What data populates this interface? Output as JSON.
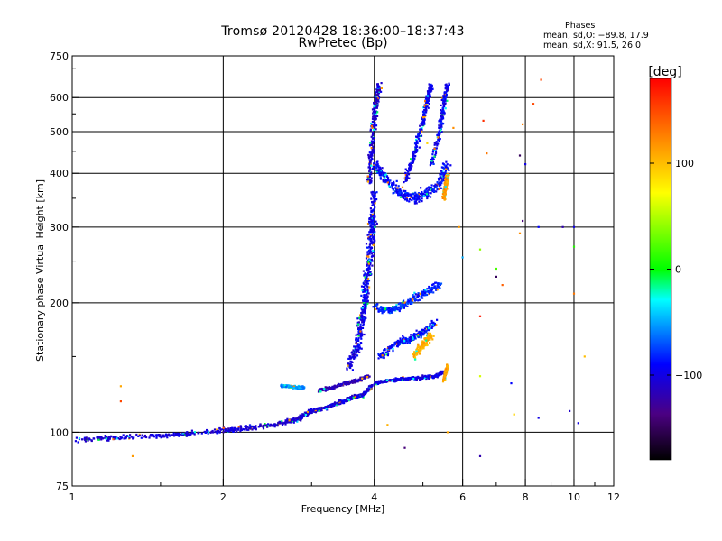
{
  "header": {
    "title": "Tromsø 20120428 18:36:00–18:37:43",
    "subtitle": "RwPretec (Bp)"
  },
  "phases_box": {
    "title": "Phases",
    "line_o": "mean, sd,O: −89.8, 17.9",
    "line_x": "mean, sd,X: 91.5, 26.0"
  },
  "chart_data": {
    "type": "scatter",
    "title": "Tromsø 20120428 18:36:00–18:37:43",
    "subtitle": "RwPretec (Bp)",
    "xlabel": "Frequency [MHz]",
    "ylabel": "Stationary phase Virtual Height [km]",
    "x_scale": "log",
    "y_scale": "log",
    "xlim": [
      1,
      12
    ],
    "ylim": [
      75,
      750
    ],
    "x_ticks": [
      1,
      2,
      4,
      6,
      8,
      10,
      12
    ],
    "x_tick_labels": [
      "1",
      "2",
      "4",
      "6",
      "8",
      "10",
      "12"
    ],
    "x_gridlines": [
      2,
      4,
      6,
      8,
      10
    ],
    "y_ticks": [
      75,
      100,
      200,
      300,
      400,
      500,
      600,
      750
    ],
    "y_tick_labels": [
      "75",
      "100",
      "200",
      "300",
      "400",
      "500",
      "600",
      "750"
    ],
    "y_gridlines": [
      100,
      200,
      300,
      400,
      500,
      600
    ],
    "grid": true,
    "colorbar": {
      "label": "[deg]",
      "range": [
        -180,
        180
      ],
      "ticks": [
        100,
        0,
        -100
      ],
      "tick_labels": [
        "100",
        "0",
        "−100"
      ]
    },
    "traces": [
      {
        "x": [
          1.02,
          1.2,
          1.45,
          1.7,
          2.0,
          2.2,
          2.5,
          2.8,
          3.0
        ],
        "y": [
          96,
          97,
          98,
          99,
          101,
          102,
          104,
          107,
          112
        ],
        "phase": -105,
        "spread": 0.018
      },
      {
        "x": [
          2.6,
          2.7,
          2.8,
          2.9
        ],
        "y": [
          128,
          128,
          127,
          127
        ],
        "phase": -55,
        "spread": 0.01
      },
      {
        "x": [
          3.0,
          3.2,
          3.4,
          3.6,
          3.8,
          3.95
        ],
        "y": [
          112,
          114,
          117,
          120,
          122,
          128
        ],
        "phase": -105,
        "spread": 0.015
      },
      {
        "x": [
          3.1,
          3.3,
          3.5,
          3.7,
          3.9
        ],
        "y": [
          125,
          127,
          130,
          132,
          135
        ],
        "phase": -115,
        "spread": 0.012
      },
      {
        "x": [
          3.55,
          3.7,
          3.85,
          3.95,
          4.0
        ],
        "y": [
          140,
          160,
          200,
          260,
          320
        ],
        "phase": -100,
        "spread": 0.04
      },
      {
        "x": [
          3.7,
          3.8,
          3.88,
          3.95,
          4.0
        ],
        "y": [
          150,
          190,
          240,
          300,
          360
        ],
        "phase": -95,
        "spread": 0.035
      },
      {
        "x": [
          3.9,
          3.95,
          4.0,
          4.05,
          4.1
        ],
        "y": [
          380,
          450,
          540,
          600,
          640
        ],
        "phase": -105,
        "spread": 0.03
      },
      {
        "x": [
          4.0,
          4.3,
          4.6,
          5.0,
          5.3,
          5.5
        ],
        "y": [
          130,
          132,
          133,
          134,
          135,
          138
        ],
        "phase": -100,
        "spread": 0.012
      },
      {
        "x": [
          4.0,
          4.3,
          4.7,
          5.0,
          5.4
        ],
        "y": [
          195,
          192,
          200,
          210,
          220
        ],
        "phase": -80,
        "spread": 0.03
      },
      {
        "x": [
          4.1,
          4.4,
          4.7,
          5.0,
          5.3
        ],
        "y": [
          150,
          160,
          165,
          170,
          180
        ],
        "phase": -90,
        "spread": 0.03
      },
      {
        "x": [
          4.0,
          4.2,
          4.5,
          4.8,
          5.1,
          5.4,
          5.6
        ],
        "y": [
          420,
          390,
          360,
          350,
          360,
          380,
          420
        ],
        "phase": -90,
        "spread": 0.04
      },
      {
        "x": [
          4.6,
          4.8,
          5.0,
          5.1,
          5.2
        ],
        "y": [
          380,
          440,
          520,
          590,
          640
        ],
        "phase": -95,
        "spread": 0.025
      },
      {
        "x": [
          5.2,
          5.4,
          5.5,
          5.6
        ],
        "y": [
          420,
          500,
          580,
          640
        ],
        "phase": -95,
        "spread": 0.025
      },
      {
        "x": [
          5.5,
          5.55,
          5.6
        ],
        "y": [
          350,
          370,
          400
        ],
        "phase": 115,
        "spread": 0.02
      },
      {
        "x": [
          5.5,
          5.55,
          5.6
        ],
        "y": [
          132,
          138,
          143
        ],
        "phase": 110,
        "spread": 0.012
      },
      {
        "x": [
          4.8,
          5.0,
          5.2
        ],
        "y": [
          150,
          160,
          168
        ],
        "phase": 105,
        "spread": 0.03
      }
    ],
    "scatter_outliers": [
      {
        "x": 1.25,
        "y": 128,
        "phase": 110
      },
      {
        "x": 1.25,
        "y": 118,
        "phase": 150
      },
      {
        "x": 1.32,
        "y": 88,
        "phase": 115
      },
      {
        "x": 4.6,
        "y": 92,
        "phase": -140
      },
      {
        "x": 4.25,
        "y": 104,
        "phase": 105
      },
      {
        "x": 5.6,
        "y": 100,
        "phase": 110
      },
      {
        "x": 5.9,
        "y": 300,
        "phase": 115
      },
      {
        "x": 6.0,
        "y": 255,
        "phase": -50
      },
      {
        "x": 6.5,
        "y": 186,
        "phase": 170
      },
      {
        "x": 6.5,
        "y": 266,
        "phase": 40
      },
      {
        "x": 6.5,
        "y": 135,
        "phase": 60
      },
      {
        "x": 6.5,
        "y": 88,
        "phase": -120
      },
      {
        "x": 6.6,
        "y": 530,
        "phase": 160
      },
      {
        "x": 6.7,
        "y": 445,
        "phase": 130
      },
      {
        "x": 7.0,
        "y": 240,
        "phase": 20
      },
      {
        "x": 7.0,
        "y": 230,
        "phase": -150
      },
      {
        "x": 7.2,
        "y": 220,
        "phase": 140
      },
      {
        "x": 7.6,
        "y": 110,
        "phase": 90
      },
      {
        "x": 7.8,
        "y": 440,
        "phase": -150
      },
      {
        "x": 7.8,
        "y": 290,
        "phase": 120
      },
      {
        "x": 7.9,
        "y": 310,
        "phase": -140
      },
      {
        "x": 7.9,
        "y": 520,
        "phase": 125
      },
      {
        "x": 8.0,
        "y": 420,
        "phase": -100
      },
      {
        "x": 8.3,
        "y": 580,
        "phase": 150
      },
      {
        "x": 8.5,
        "y": 300,
        "phase": -90
      },
      {
        "x": 8.6,
        "y": 660,
        "phase": 150
      },
      {
        "x": 8.5,
        "y": 108,
        "phase": -100
      },
      {
        "x": 9.5,
        "y": 300,
        "phase": -120
      },
      {
        "x": 9.8,
        "y": 112,
        "phase": -110
      },
      {
        "x": 10.0,
        "y": 300,
        "phase": -100
      },
      {
        "x": 10.0,
        "y": 270,
        "phase": 10
      },
      {
        "x": 10.0,
        "y": 210,
        "phase": 130
      },
      {
        "x": 10.2,
        "y": 105,
        "phase": -100
      },
      {
        "x": 10.5,
        "y": 150,
        "phase": 100
      },
      {
        "x": 7.5,
        "y": 130,
        "phase": -90
      },
      {
        "x": 5.75,
        "y": 510,
        "phase": 120
      },
      {
        "x": 5.1,
        "y": 470,
        "phase": 90
      }
    ]
  },
  "colors": {
    "background": "#ffffff",
    "axes": "#000000",
    "grid": "#000000"
  }
}
